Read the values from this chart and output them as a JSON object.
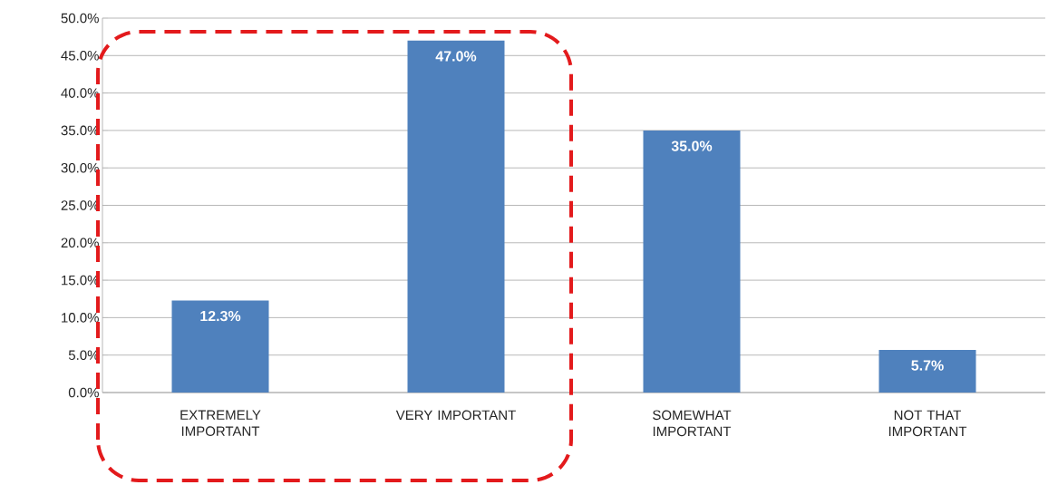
{
  "chart_data": {
    "type": "bar",
    "categories": [
      "EXTREMELY IMPORTANT",
      "VERY IMPORTANT",
      "SOMEWHAT IMPORTANT",
      "NOT THAT IMPORTANT"
    ],
    "values": [
      12.3,
      47.0,
      35.0,
      5.7
    ],
    "value_labels": [
      "12.3%",
      "47.0%",
      "35.0%",
      "5.7%"
    ],
    "color": "#4f81bd",
    "ylim": [
      0,
      50
    ],
    "yticks": [
      {
        "value": 0,
        "label": "0.0%"
      },
      {
        "value": 5,
        "label": "5.0%"
      },
      {
        "value": 10,
        "label": "10.0%"
      },
      {
        "value": 15,
        "label": "15.0%"
      },
      {
        "value": 20,
        "label": "20.0%"
      },
      {
        "value": 25,
        "label": "25.0%"
      },
      {
        "value": 30,
        "label": "30.0%"
      },
      {
        "value": 35,
        "label": "35.0%"
      },
      {
        "value": 40,
        "label": "40.0%"
      },
      {
        "value": 45,
        "label": "45.0%"
      },
      {
        "value": 50,
        "label": "50.0%"
      }
    ],
    "grid": "y"
  }
}
